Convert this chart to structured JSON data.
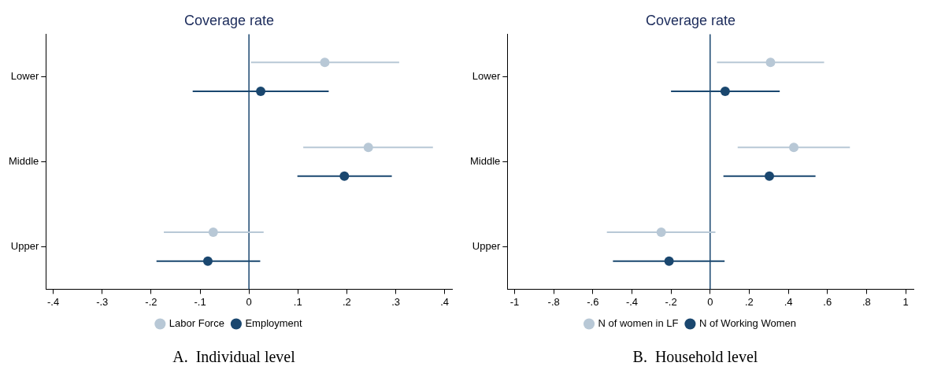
{
  "chart_data": [
    {
      "type": "scatter",
      "title": "Coverage rate",
      "orientation": "horizontal",
      "categories": [
        "Lower",
        "Middle",
        "Upper"
      ],
      "marker": "circle",
      "grid": false,
      "legend": "bottom",
      "series": [
        {
          "name": "Labor Force",
          "color": "#b8c8d6",
          "values": [
            0.155,
            0.244,
            -0.073
          ],
          "errors": [
            [
              0.004,
              0.307
            ],
            [
              0.111,
              0.376
            ],
            [
              -0.174,
              0.03
            ]
          ]
        },
        {
          "name": "Employment",
          "color": "#1a476f",
          "values": [
            0.024,
            0.195,
            -0.084
          ],
          "errors": [
            [
              -0.115,
              0.163
            ],
            [
              0.099,
              0.292
            ],
            [
              -0.189,
              0.023
            ]
          ]
        }
      ],
      "xlim": [
        -0.415,
        0.415
      ],
      "xticks": [
        {
          "value": -0.4,
          "label": "-.4"
        },
        {
          "value": -0.3,
          "label": "-.3"
        },
        {
          "value": -0.2,
          "label": "-.2"
        },
        {
          "value": -0.1,
          "label": "-.1"
        },
        0,
        {
          "value": 0.1,
          "label": ".1"
        },
        {
          "value": 0.2,
          "label": ".2"
        },
        {
          "value": 0.3,
          "label": ".3"
        },
        {
          "value": 0.4,
          "label": ".4"
        }
      ],
      "ref_lines": [
        {
          "axis": "x",
          "value": 0,
          "color": "#1a476f"
        }
      ],
      "annotations": [
        "A.  Individual level"
      ]
    },
    {
      "type": "scatter",
      "title": "Coverage rate",
      "orientation": "horizontal",
      "categories": [
        "Lower",
        "Middle",
        "Upper"
      ],
      "marker": "circle",
      "grid": false,
      "legend": "bottom",
      "series": [
        {
          "name": "N of women in LF",
          "color": "#b8c8d6",
          "values": [
            0.309,
            0.428,
            -0.25
          ],
          "errors": [
            [
              0.035,
              0.583
            ],
            [
              0.141,
              0.715
            ],
            [
              -0.528,
              0.027
            ]
          ]
        },
        {
          "name": "N of Working Women",
          "color": "#1a476f",
          "values": [
            0.077,
            0.303,
            -0.21
          ],
          "errors": [
            [
              -0.2,
              0.356
            ],
            [
              0.068,
              0.539
            ],
            [
              -0.497,
              0.074
            ]
          ]
        }
      ],
      "xlim": [
        -1.037,
        1.04
      ],
      "xticks": [
        -1,
        {
          "value": -0.8,
          "label": "-.8"
        },
        {
          "value": -0.6,
          "label": "-.6"
        },
        {
          "value": -0.4,
          "label": "-.4"
        },
        {
          "value": -0.2,
          "label": "-.2"
        },
        0,
        {
          "value": 0.2,
          "label": ".2"
        },
        {
          "value": 0.4,
          "label": ".4"
        },
        {
          "value": 0.6,
          "label": ".6"
        },
        {
          "value": 0.8,
          "label": ".8"
        },
        1
      ],
      "ref_lines": [
        {
          "axis": "x",
          "value": 0,
          "color": "#1a476f"
        }
      ],
      "annotations": [
        "B.  Household level"
      ]
    }
  ]
}
